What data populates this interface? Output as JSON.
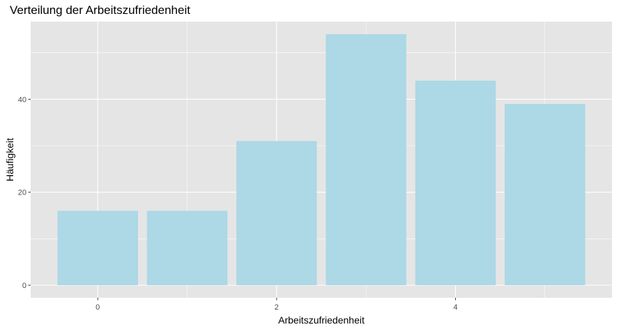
{
  "chart_data": {
    "type": "bar",
    "title": "Verteilung der Arbeitszufriedenheit",
    "xlabel": "Arbeitszufriedenheit",
    "ylabel": "Häufigkeit",
    "x": [
      0,
      1,
      2,
      3,
      4,
      5
    ],
    "values": [
      16,
      16,
      31,
      54,
      44,
      39
    ],
    "xlim": [
      -0.75,
      5.75
    ],
    "ylim": [
      -2.7,
      56.7
    ],
    "xticks": [
      0,
      2,
      4
    ],
    "xtick_labels": [
      "0",
      "2",
      "4"
    ],
    "yticks": [
      0,
      20,
      40
    ],
    "ytick_labels": [
      "0",
      "20",
      "40"
    ],
    "grid": true,
    "legend": "none",
    "colors": {
      "bar": "#add8e6",
      "panel_background": "#e5e5e5",
      "grid_line": "#ffffff",
      "tick_text": "#4d4d4d",
      "tick_mark": "#333333"
    }
  }
}
